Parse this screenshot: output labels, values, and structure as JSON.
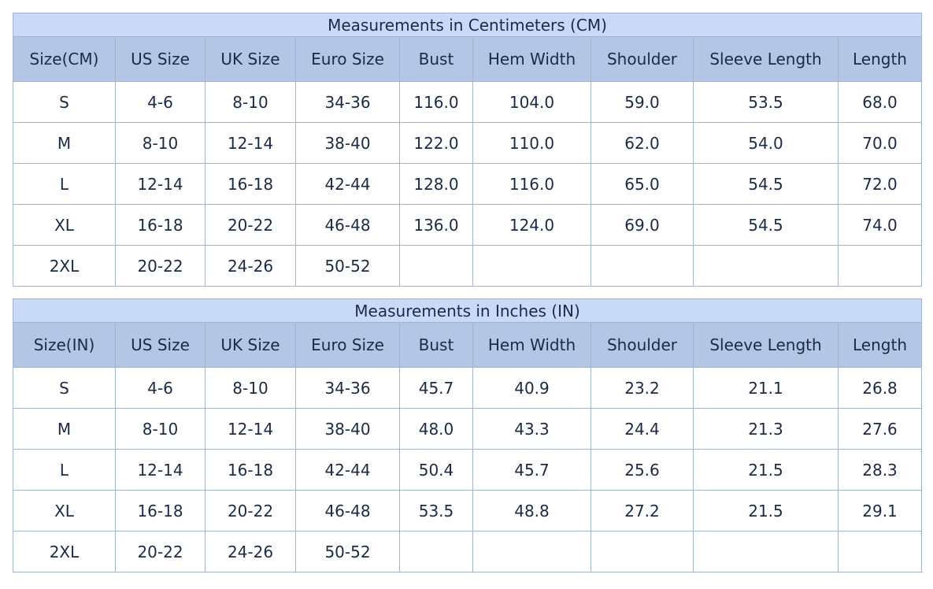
{
  "tables": [
    {
      "title": "Measurements in Centimeters (CM)",
      "header": [
        "Size(CM)",
        "US Size",
        "UK Size",
        "Euro Size",
        "Bust",
        "Hem Width",
        "Shoulder",
        "Sleeve Length",
        "Length"
      ],
      "rows": [
        [
          "S",
          "4-6",
          "8-10",
          "34-36",
          "116.0",
          "104.0",
          "59.0",
          "53.5",
          "68.0"
        ],
        [
          "M",
          "8-10",
          "12-14",
          "38-40",
          "122.0",
          "110.0",
          "62.0",
          "54.0",
          "70.0"
        ],
        [
          "L",
          "12-14",
          "16-18",
          "42-44",
          "128.0",
          "116.0",
          "65.0",
          "54.5",
          "72.0"
        ],
        [
          "XL",
          "16-18",
          "20-22",
          "46-48",
          "136.0",
          "124.0",
          "69.0",
          "54.5",
          "74.0"
        ],
        [
          "2XL",
          "20-22",
          "24-26",
          "50-52"
        ]
      ]
    },
    {
      "title": "Measurements in Inches (IN)",
      "header": [
        "Size(IN)",
        "US Size",
        "UK Size",
        "Euro Size",
        "Bust",
        "Hem Width",
        "Shoulder",
        "Sleeve Length",
        "Length"
      ],
      "rows": [
        [
          "S",
          "4-6",
          "8-10",
          "34-36",
          "45.7",
          "40.9",
          "23.2",
          "21.1",
          "26.8"
        ],
        [
          "M",
          "8-10",
          "12-14",
          "38-40",
          "48.0",
          "43.3",
          "24.4",
          "21.3",
          "27.6"
        ],
        [
          "L",
          "12-14",
          "16-18",
          "42-44",
          "50.4",
          "45.7",
          "25.6",
          "21.5",
          "28.3"
        ],
        [
          "XL",
          "16-18",
          "20-22",
          "46-48",
          "53.5",
          "48.8",
          "27.2",
          "21.5",
          "29.1"
        ],
        [
          "2XL",
          "20-22",
          "24-26",
          "50-52"
        ]
      ]
    }
  ]
}
